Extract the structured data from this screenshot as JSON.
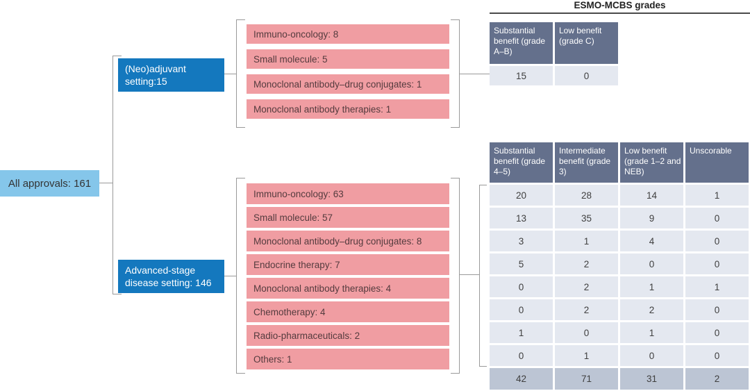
{
  "diagram": {
    "root_label": "All approvals: 161",
    "grades_title": "ESMO-MCBS grades",
    "neoadjuvant": {
      "label_lines": [
        "(Neo)adjuvant",
        "setting:15"
      ],
      "therapies": [
        "Immuno-oncology: 8",
        "Small molecule: 5",
        "Monoclonal antibody–drug conjugates: 1",
        "Monoclonal antibody therapies: 1"
      ],
      "table": {
        "headers": [
          "Substantial benefit (grade A–B)",
          "Low benefit (grade C)"
        ],
        "values": [
          "15",
          "0"
        ]
      }
    },
    "advanced": {
      "label_lines": [
        "Advanced-stage",
        "disease setting: 146"
      ],
      "therapies": [
        "Immuno-oncology: 63",
        "Small molecule: 57",
        "Monoclonal antibody–drug conjugates: 8",
        "Endocrine therapy: 7",
        "Monoclonal antibody therapies: 4",
        "Chemotherapy: 4",
        "Radio-pharmaceuticals: 2",
        "Others: 1"
      ],
      "table": {
        "headers": [
          "Substantial benefit (grade 4–5)",
          "Intermediate benefit (grade 3)",
          "Low benefit (grade 1–2 and NEB)",
          "Unscorable"
        ],
        "rows": [
          [
            "20",
            "28",
            "14",
            "1"
          ],
          [
            "13",
            "35",
            "9",
            "0"
          ],
          [
            "3",
            "1",
            "4",
            "0"
          ],
          [
            "5",
            "2",
            "0",
            "0"
          ],
          [
            "0",
            "2",
            "1",
            "1"
          ],
          [
            "0",
            "2",
            "2",
            "0"
          ],
          [
            "1",
            "0",
            "1",
            "0"
          ],
          [
            "0",
            "1",
            "0",
            "0"
          ]
        ],
        "totals": [
          "42",
          "71",
          "31",
          "2"
        ]
      }
    },
    "colors": {
      "root_box": "#85C6EA",
      "setting_box": "#1478BE",
      "therapy_box": "#F09DA2",
      "table_header": "#64708C",
      "table_cell": "#E4E8F0",
      "table_total": "#BCC5D4",
      "connector": "#999999"
    }
  }
}
